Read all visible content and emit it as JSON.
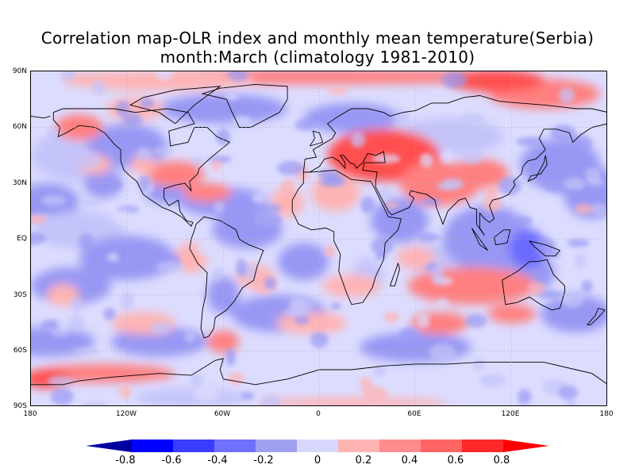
{
  "title": {
    "line1": "Correlation map-OLR index and monthly mean temperature(Serbia)",
    "line2": "month:March (climatology 1981-2010)"
  },
  "axes": {
    "y_labels": [
      "90N",
      "60N",
      "30N",
      "EQ",
      "30S",
      "60S",
      "90S"
    ],
    "x_labels": [
      "180",
      "120W",
      "60W",
      "0",
      "60E",
      "120E",
      "180"
    ]
  },
  "colorbar": {
    "colors": [
      "#0000a0",
      "#0000ff",
      "#3c3cff",
      "#7070ff",
      "#a0a0f0",
      "#d8d8ff",
      "#ffb4b4",
      "#ff8c8c",
      "#ff6464",
      "#ff2828",
      "#ff0000"
    ],
    "labels": [
      "-0.8",
      "-0.6",
      "-0.4",
      "-0.2",
      "0",
      "0.2",
      "0.4",
      "0.6",
      "0.8"
    ]
  },
  "map_colors": {
    "strong_neg": "#6a6aff",
    "neg": "#9898f4",
    "weak_neg": "#c4c4fa",
    "neutral": "#dcdcff",
    "weak_pos": "#ffb4b4",
    "pos": "#ff8080",
    "strong_pos": "#ff5050",
    "coast": "#000000"
  }
}
